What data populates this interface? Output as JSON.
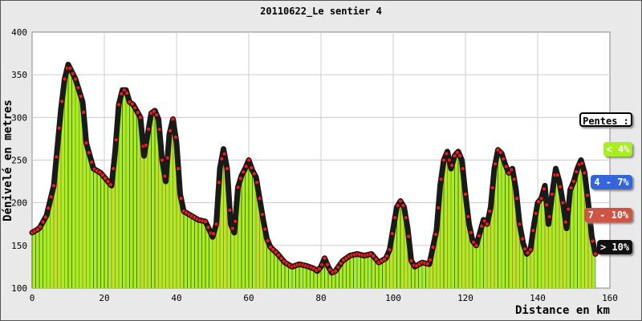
{
  "chart_data": {
    "type": "area",
    "title": "20110622_Le sentier 4",
    "xlabel": "Distance en km",
    "ylabel": "Dénivelé en metres",
    "xlim": [
      0,
      160
    ],
    "ylim": [
      100,
      400
    ],
    "xticks": [
      0,
      20,
      40,
      60,
      80,
      100,
      120,
      140,
      160
    ],
    "yticks": [
      100,
      150,
      200,
      250,
      300,
      350,
      400
    ],
    "x_end": 156,
    "grid": true,
    "fill_color": "#a8ee22",
    "line_color": "#1a1a1a",
    "marker_color": "#e02020",
    "profile": [
      [
        0,
        165
      ],
      [
        2,
        170
      ],
      [
        4,
        185
      ],
      [
        6,
        220
      ],
      [
        8,
        310
      ],
      [
        9,
        345
      ],
      [
        10,
        362
      ],
      [
        12,
        345
      ],
      [
        14,
        318
      ],
      [
        15,
        270
      ],
      [
        17,
        240
      ],
      [
        19,
        235
      ],
      [
        21,
        225
      ],
      [
        22,
        220
      ],
      [
        23,
        260
      ],
      [
        24,
        315
      ],
      [
        25,
        332
      ],
      [
        26,
        332
      ],
      [
        27,
        318
      ],
      [
        28,
        315
      ],
      [
        30,
        300
      ],
      [
        31,
        255
      ],
      [
        32,
        280
      ],
      [
        33,
        305
      ],
      [
        34,
        308
      ],
      [
        35,
        298
      ],
      [
        36,
        250
      ],
      [
        37,
        225
      ],
      [
        38,
        280
      ],
      [
        39,
        298
      ],
      [
        40,
        270
      ],
      [
        41,
        210
      ],
      [
        42,
        190
      ],
      [
        44,
        185
      ],
      [
        46,
        180
      ],
      [
        48,
        178
      ],
      [
        50,
        160
      ],
      [
        51,
        175
      ],
      [
        52,
        240
      ],
      [
        53,
        263
      ],
      [
        54,
        240
      ],
      [
        55,
        175
      ],
      [
        56,
        165
      ],
      [
        57,
        218
      ],
      [
        58,
        232
      ],
      [
        59,
        240
      ],
      [
        60,
        250
      ],
      [
        61,
        238
      ],
      [
        62,
        230
      ],
      [
        63,
        205
      ],
      [
        64,
        180
      ],
      [
        65,
        158
      ],
      [
        66,
        148
      ],
      [
        68,
        140
      ],
      [
        70,
        130
      ],
      [
        72,
        125
      ],
      [
        74,
        128
      ],
      [
        76,
        126
      ],
      [
        78,
        123
      ],
      [
        79,
        120
      ],
      [
        80,
        125
      ],
      [
        81,
        135
      ],
      [
        82,
        125
      ],
      [
        83,
        118
      ],
      [
        84,
        120
      ],
      [
        86,
        132
      ],
      [
        88,
        138
      ],
      [
        90,
        140
      ],
      [
        92,
        138
      ],
      [
        94,
        140
      ],
      [
        96,
        130
      ],
      [
        98,
        135
      ],
      [
        99,
        145
      ],
      [
        100,
        170
      ],
      [
        101,
        195
      ],
      [
        102,
        202
      ],
      [
        103,
        195
      ],
      [
        104,
        170
      ],
      [
        105,
        132
      ],
      [
        106,
        125
      ],
      [
        108,
        130
      ],
      [
        110,
        128
      ],
      [
        112,
        168
      ],
      [
        113,
        220
      ],
      [
        114,
        250
      ],
      [
        115,
        260
      ],
      [
        116,
        240
      ],
      [
        117,
        255
      ],
      [
        118,
        260
      ],
      [
        119,
        250
      ],
      [
        120,
        210
      ],
      [
        121,
        175
      ],
      [
        122,
        155
      ],
      [
        123,
        150
      ],
      [
        124,
        165
      ],
      [
        125,
        180
      ],
      [
        126,
        175
      ],
      [
        127,
        195
      ],
      [
        128,
        240
      ],
      [
        129,
        262
      ],
      [
        130,
        258
      ],
      [
        131,
        245
      ],
      [
        132,
        235
      ],
      [
        133,
        240
      ],
      [
        134,
        215
      ],
      [
        135,
        175
      ],
      [
        136,
        152
      ],
      [
        137,
        140
      ],
      [
        138,
        145
      ],
      [
        139,
        175
      ],
      [
        140,
        200
      ],
      [
        141,
        205
      ],
      [
        142,
        220
      ],
      [
        143,
        175
      ],
      [
        144,
        210
      ],
      [
        145,
        240
      ],
      [
        146,
        225
      ],
      [
        147,
        200
      ],
      [
        148,
        170
      ],
      [
        149,
        215
      ],
      [
        150,
        225
      ],
      [
        151,
        240
      ],
      [
        152,
        250
      ],
      [
        153,
        235
      ],
      [
        154,
        200
      ],
      [
        155,
        160
      ],
      [
        156,
        140
      ]
    ],
    "legend": {
      "title": "Pentes :",
      "items": [
        {
          "label": "< 4%",
          "color": "#a8ee22",
          "text_color": "#ffffff"
        },
        {
          "label": "4 - 7%",
          "color": "#3366dd",
          "text_color": "#ffffff"
        },
        {
          "label": "7 - 10%",
          "color": "#cc5544",
          "text_color": "#ffffff"
        },
        {
          "label": "> 10%",
          "color": "#111111",
          "text_color": "#ffffff"
        }
      ]
    }
  }
}
